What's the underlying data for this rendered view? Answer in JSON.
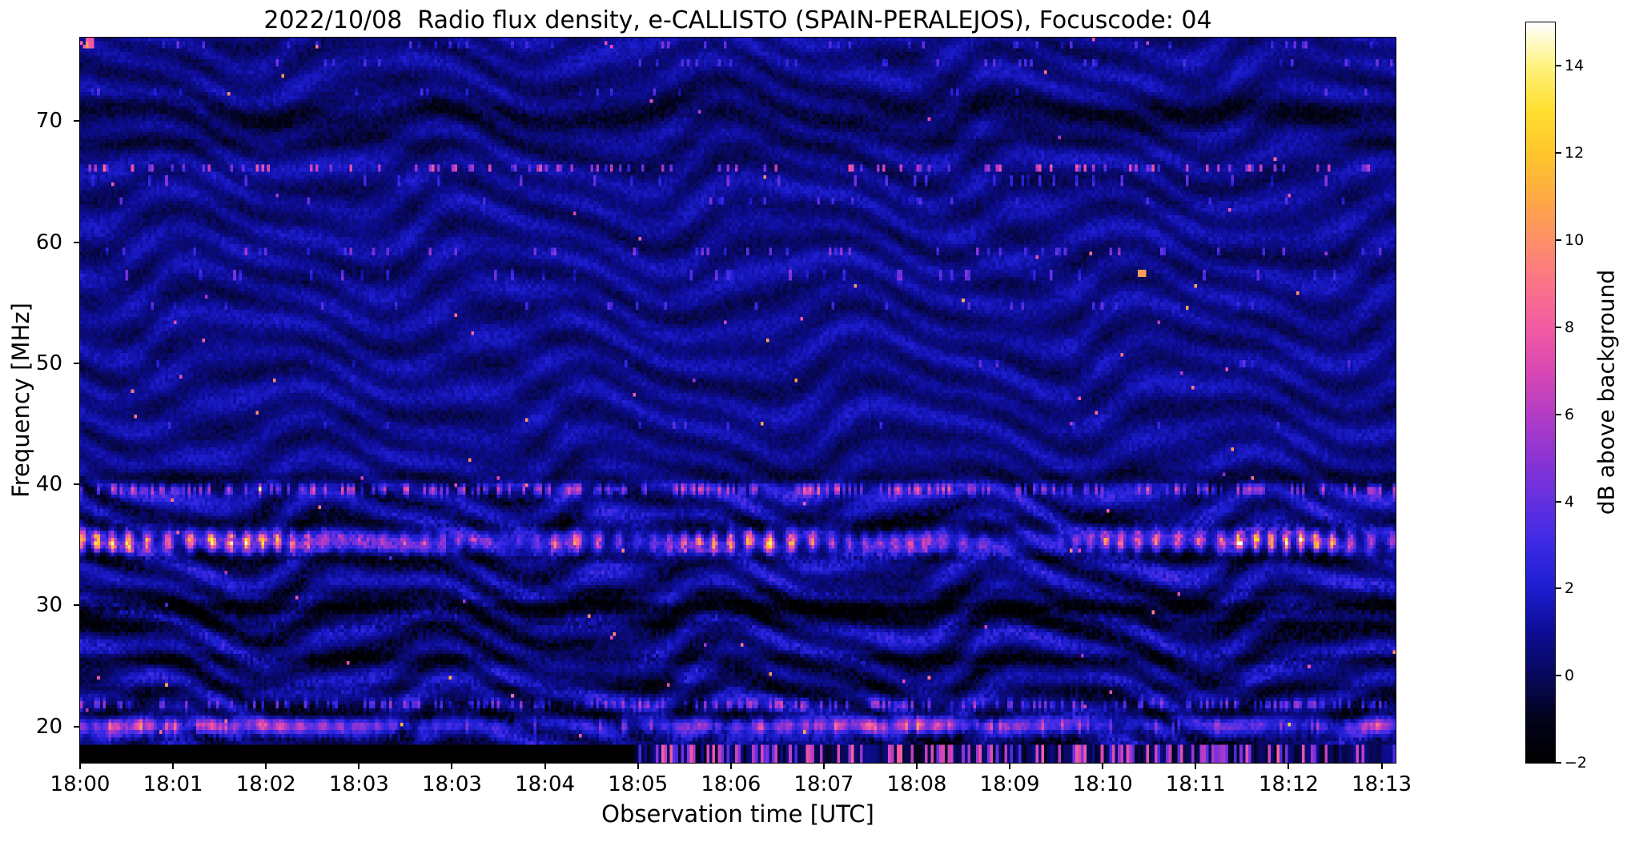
{
  "figure": {
    "background": "#ffffff"
  },
  "chart_data": {
    "type": "heatmap",
    "title": "2022/10/08  Radio flux density, e-CALLISTO (SPAIN-PERALEJOS), Focuscode: 04",
    "date": "2022/10/08",
    "station": "SPAIN-PERALEJOS",
    "focuscode": "04",
    "xlabel": "Observation time [UTC]",
    "ylabel": "Frequency [MHz]",
    "x_ticks": [
      "18:00",
      "18:01",
      "18:02",
      "18:03",
      "18:03",
      "18:04",
      "18:05",
      "18:06",
      "18:07",
      "18:08",
      "18:09",
      "18:10",
      "18:11",
      "18:12",
      "18:13"
    ],
    "y_ticks": [
      20,
      30,
      40,
      50,
      60,
      70
    ],
    "freq_range_mhz": [
      17.0,
      76.9
    ],
    "time_range_utc": [
      "18:00",
      "18:14"
    ],
    "grid": false,
    "colorbar": {
      "label": "dB above background",
      "range_db": [
        -2,
        15
      ],
      "ticks": [
        {
          "v": 14,
          "label": "14"
        },
        {
          "v": 12,
          "label": "12"
        },
        {
          "v": 10,
          "label": "10"
        },
        {
          "v": 8,
          "label": "8"
        },
        {
          "v": 6,
          "label": "6"
        },
        {
          "v": 4,
          "label": "4"
        },
        {
          "v": 2,
          "label": "2"
        },
        {
          "v": 0,
          "label": "0"
        },
        {
          "v": -2,
          "label": "−2"
        }
      ]
    },
    "features": [
      {
        "kind": "interference_fringes",
        "desc": "Undulating quasi-horizontal fringes over whole band",
        "spacing_mhz": 3,
        "undulation_period_min": 3,
        "amplitude_db": 1.5
      },
      {
        "kind": "bright_rfi_band",
        "freq_mhz": 35.2,
        "width_mhz": 1.5,
        "peak_db": 13,
        "desc": "String of bright pink/white dashes across full duration, fading near 18:06"
      },
      {
        "kind": "bright_rfi_band",
        "freq_mhz": 20.0,
        "width_mhz": 0.9,
        "peak_db": 10,
        "desc": "Persistent bright pink line"
      },
      {
        "kind": "dotted_row",
        "freq_mhz": 39.5,
        "peak_db": 7
      },
      {
        "kind": "dotted_row",
        "freq_mhz": 21.8,
        "peak_db": 6
      },
      {
        "kind": "speckle_row",
        "freq_mhz": 66.0,
        "peak_db": 8
      },
      {
        "kind": "speckle_row",
        "freq_mhz": 59.3,
        "peak_db": 6
      },
      {
        "kind": "dark_absorption_line",
        "freq_mhz": 29.8,
        "depth_db": -2
      },
      {
        "kind": "dark_wavy_band",
        "freq_mhz": 70.6,
        "depth_db": -1
      },
      {
        "kind": "no_data_black_strip",
        "freq_below_mhz": 18.4,
        "time_range": [
          "18:00",
          "18:06"
        ],
        "value_db": -2
      },
      {
        "kind": "speckled_strip",
        "freq_below_mhz": 18.4,
        "time_range": [
          "18:06",
          "18:14"
        ],
        "desc": "Dense pink/blue speckles"
      },
      {
        "kind": "hot_pixel",
        "time_utc": "18:11.4",
        "freq_mhz": 57.4,
        "value_db": 10.5
      }
    ],
    "render": {
      "grid": {
        "cols": 464,
        "rows": 200
      },
      "time_span_min": 14.15,
      "freq_top_mhz": 76.9,
      "freq_bottom_mhz": 17.0,
      "value_range": [
        -2,
        15
      ],
      "colormap_stops": [
        [
          -2,
          "#000000"
        ],
        [
          -1,
          "#03031c"
        ],
        [
          0,
          "#08085e"
        ],
        [
          1,
          "#0d0d96"
        ],
        [
          2,
          "#1d1dd0"
        ],
        [
          3,
          "#3c2ae6"
        ],
        [
          4,
          "#6430e0"
        ],
        [
          5,
          "#8c34d4"
        ],
        [
          6,
          "#b43cc4"
        ],
        [
          7,
          "#d948b4"
        ],
        [
          8,
          "#f25ba2"
        ],
        [
          9,
          "#fb7489"
        ],
        [
          10,
          "#fd8f68"
        ],
        [
          11,
          "#feaa44"
        ],
        [
          12,
          "#fec62c"
        ],
        [
          13,
          "#ffdf30"
        ],
        [
          14,
          "#fff27e"
        ],
        [
          15,
          "#ffffff"
        ]
      ],
      "fringe": {
        "amp_low": 1.06,
        "amp_high": 0.66,
        "spacing_rad": 2.05,
        "wobble": 4.2,
        "wobble_rate": 1.9,
        "shear": 0.145,
        "secondary": 0.55
      },
      "dark_lines": [
        [
          70.6,
          0.95,
          1.35,
          0.5,
          2.1
        ],
        [
          68.2,
          0.4,
          0.6,
          0,
          0
        ],
        [
          40.6,
          0.4,
          0.9,
          0,
          0
        ],
        [
          36.7,
          0.45,
          1.5,
          0,
          0
        ],
        [
          33.9,
          0.4,
          1.6,
          0,
          0
        ],
        [
          31.1,
          0.35,
          1.1,
          0,
          0
        ],
        [
          29.75,
          0.5,
          2.4,
          0,
          0
        ],
        [
          28.5,
          0.35,
          1.3,
          0,
          0
        ],
        [
          25.55,
          0.4,
          1.5,
          0,
          0
        ],
        [
          23.2,
          0.35,
          1.1,
          0,
          0
        ],
        [
          21.1,
          0.3,
          1.2,
          0,
          0
        ],
        [
          18.95,
          0.28,
          0.9,
          0,
          0
        ]
      ],
      "speckle_rows": [
        [
          66.0,
          0.22,
          5.0
        ],
        [
          65.1,
          0.07,
          3.0
        ],
        [
          63.4,
          0.05,
          2.5
        ],
        [
          59.3,
          0.1,
          3.2
        ],
        [
          57.3,
          0.07,
          2.8
        ],
        [
          54.8,
          0.05,
          2.4
        ],
        [
          49.9,
          0.03,
          2.0
        ],
        [
          44.9,
          0.03,
          2.0
        ],
        [
          72.5,
          0.04,
          2.2
        ],
        [
          74.9,
          0.05,
          2.4
        ],
        [
          76.3,
          0.07,
          2.6
        ]
      ],
      "bright_bands": {
        "band35": {
          "f": 35.25,
          "sigma": 0.6,
          "base": 1.6,
          "bead_amp": 9.0,
          "bead_rate": 33,
          "fade_center_min": 6.05,
          "fade_sigma": 0.32
        },
        "band20": {
          "f": 20.0,
          "sigma": 0.42,
          "amp": 4.6,
          "bead_rate": 29
        },
        "dots395": {
          "f": 39.55,
          "sigma": 0.3,
          "prob": 0.4,
          "amp": 4.5
        },
        "dots218": {
          "f": 21.8,
          "sigma": 0.3,
          "prob": 0.4,
          "amp": 3.8
        },
        "dash192": {
          "f": 19.2,
          "halfw": 0.3,
          "prob": 0.5,
          "amp": 1.1
        }
      },
      "hot_pixels": {
        "prob": 0.0013,
        "min_db": 5,
        "extra_db": 5
      },
      "no_data": {
        "below_mhz": 18.35,
        "until_min": 5.95
      },
      "bottom_speckle": {
        "bright_prob": 0.38,
        "bright_min": 3,
        "bright_extra": 5.5
      }
    }
  }
}
